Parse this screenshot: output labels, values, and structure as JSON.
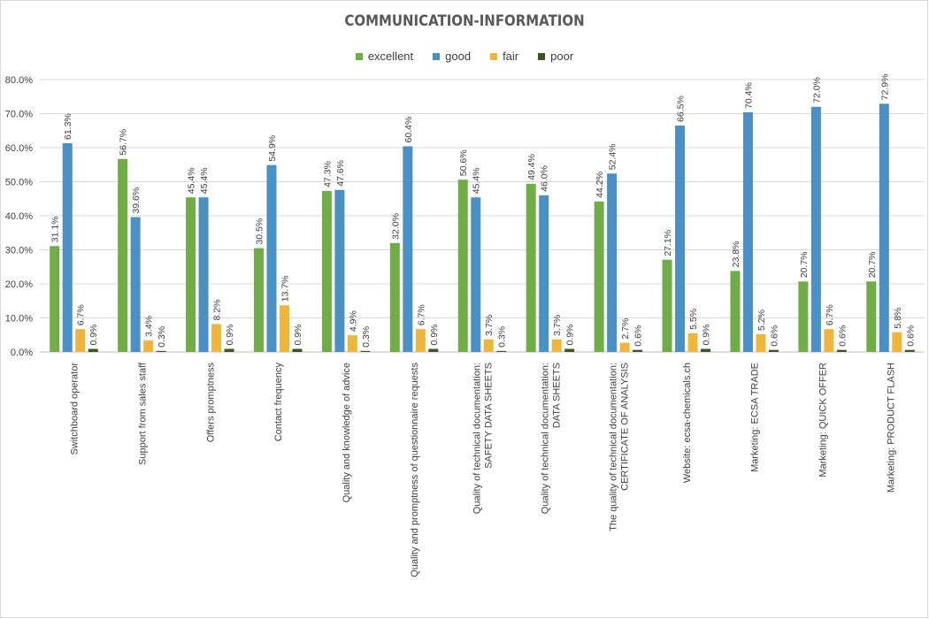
{
  "chart_data": {
    "type": "bar",
    "title": "COMMUNICATION-INFORMATION",
    "legend_position": "top",
    "grid": true,
    "ylim": [
      0,
      80
    ],
    "y_ticks": [
      "0.0%",
      "10.0%",
      "20.0%",
      "30.0%",
      "40.0%",
      "50.0%",
      "60.0%",
      "70.0%",
      "80.0%"
    ],
    "categories": [
      [
        "Switchboard operator"
      ],
      [
        "Support from sales staff"
      ],
      [
        "Offers promptness"
      ],
      [
        "Contact frequency"
      ],
      [
        "Quality and knowledge of advice"
      ],
      [
        "Quality and promptness of  questionnaire requests"
      ],
      [
        "Quality of technical documentation:",
        "SAFETY DATA SHEETS"
      ],
      [
        "Quality of technical documentation:",
        "DATA SHEETS"
      ],
      [
        "The quality of technical documentation:",
        "CERTIFICATE OF ANALYSIS"
      ],
      [
        "Website: ecsa-chemicals.ch"
      ],
      [
        "Marketing: ECSA TRADE"
      ],
      [
        "Marketing: QUICK OFFER"
      ],
      [
        "Marketing: PRODUCT FLASH"
      ]
    ],
    "series": [
      {
        "name": "excellent",
        "color": "#70ad47",
        "values": [
          31.1,
          56.7,
          45.4,
          30.5,
          47.3,
          32.0,
          50.6,
          49.4,
          44.2,
          27.1,
          23.8,
          20.7,
          20.7
        ],
        "labels": [
          "31.1%",
          "56.7%",
          "45.4%",
          "30.5%",
          "47.3%",
          "32.0%",
          "50.6%",
          "49.4%",
          "44.2%",
          "27.1%",
          "23.8%",
          "20.7%",
          "20.7%"
        ]
      },
      {
        "name": "good",
        "color": "#4a90c4",
        "values": [
          61.3,
          39.6,
          45.4,
          54.9,
          47.6,
          60.4,
          45.4,
          46.0,
          52.4,
          66.5,
          70.4,
          72.0,
          72.9
        ],
        "labels": [
          "61.3%",
          "39.6%",
          "45.4%",
          "54.9%",
          "47.6%",
          "60.4%",
          "45.4%",
          "46.0%",
          "52.4%",
          "66.5%",
          "70.4%",
          "72.0%",
          "72.9%"
        ]
      },
      {
        "name": "fair",
        "color": "#f0b63c",
        "values": [
          6.7,
          3.4,
          8.2,
          13.7,
          4.9,
          6.7,
          3.7,
          3.7,
          2.7,
          5.5,
          5.2,
          6.7,
          5.8
        ],
        "labels": [
          "6.7%",
          "3.4%",
          "8.2%",
          "13.7%",
          "4.9%",
          "6.7%",
          "3.7%",
          "3.7%",
          "2.7%",
          "5.5%",
          "5.2%",
          "6.7%",
          "5.8%"
        ]
      },
      {
        "name": "poor",
        "color": "#375623",
        "values": [
          0.9,
          0.3,
          0.9,
          0.9,
          0.3,
          0.9,
          0.3,
          0.9,
          0.6,
          0.9,
          0.6,
          0.6,
          0.6
        ],
        "labels": [
          "0.9%",
          "0.3%",
          "0.9%",
          "0.9%",
          "0.3%",
          "0.9%",
          "0.3%",
          "0.9%",
          "0.6%",
          "0.9%",
          "0.6%",
          "0.6%",
          "0.6%"
        ]
      }
    ]
  }
}
